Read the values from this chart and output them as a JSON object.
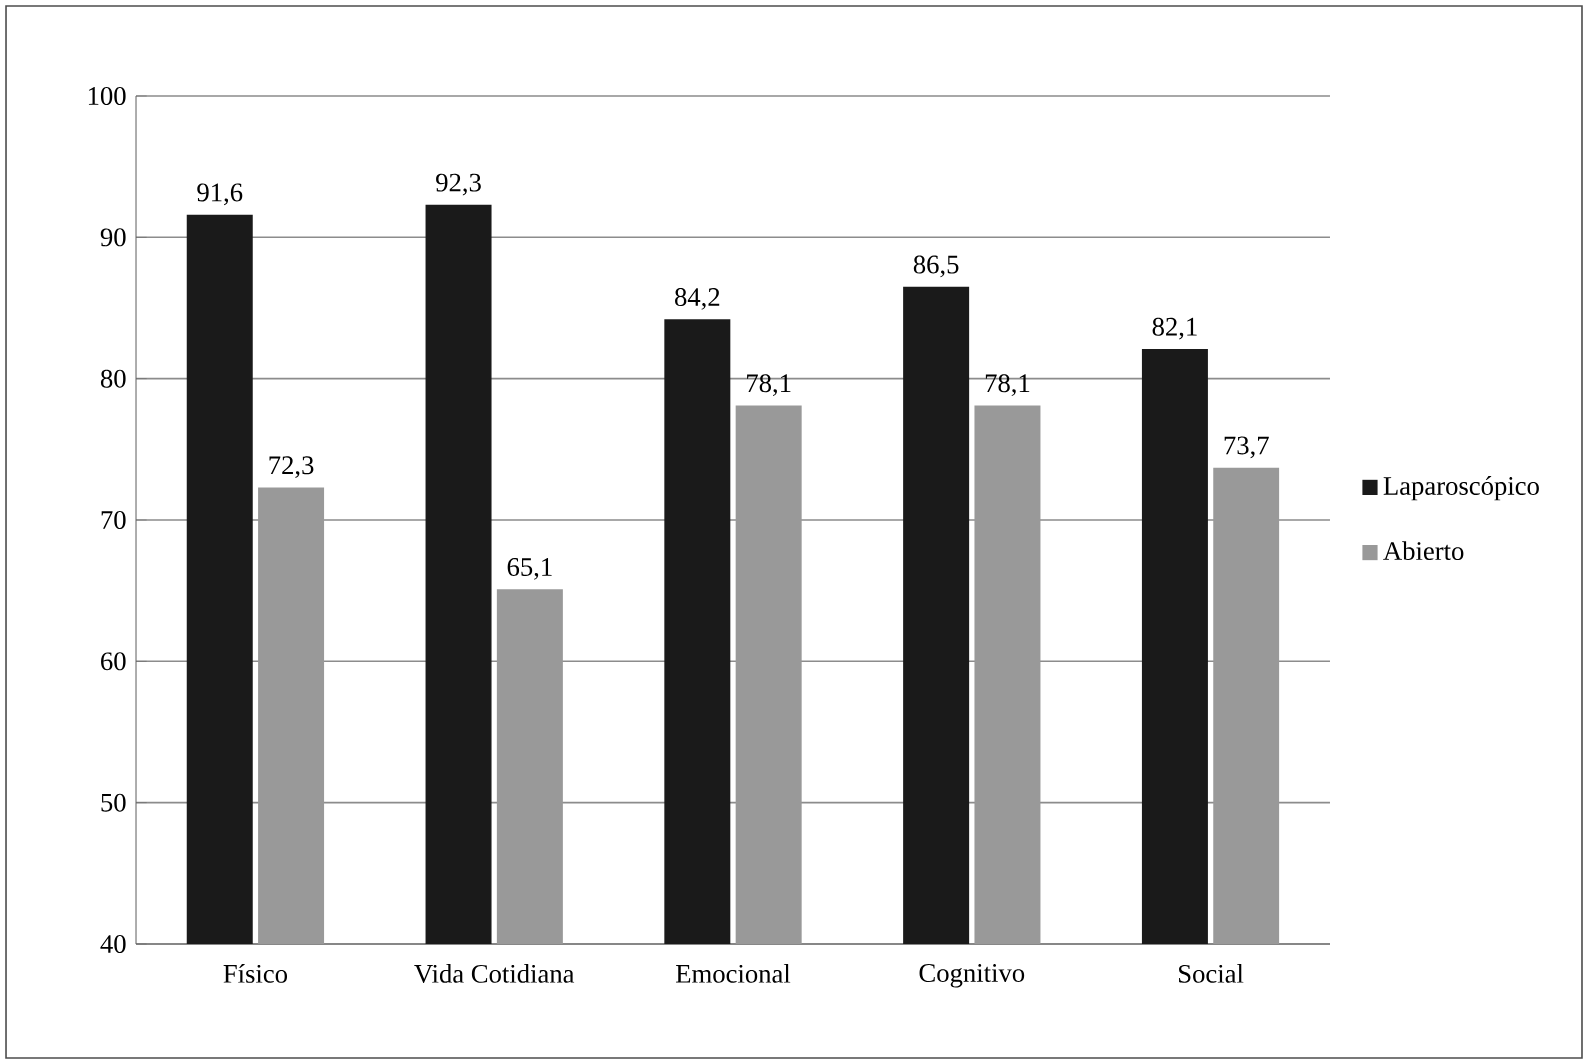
{
  "chart_data": {
    "type": "bar",
    "categories": [
      "Físico",
      "Vida Cotidiana",
      "Emocional",
      "Cognitivo",
      "Social"
    ],
    "series": [
      {
        "name": "Laparoscópico",
        "color": "#1a1a1a",
        "values": [
          91.6,
          92.3,
          84.2,
          86.5,
          82.1
        ],
        "value_labels": [
          "91,6",
          "92,3",
          "84,2",
          "86,5",
          "82,1"
        ]
      },
      {
        "name": "Abierto",
        "color": "#999999",
        "values": [
          72.3,
          65.1,
          78.1,
          78.1,
          73.7
        ],
        "value_labels": [
          "72,3",
          "65,1",
          "78,1",
          "78,1",
          "73,7"
        ]
      }
    ],
    "ylim": [
      40,
      100
    ],
    "yticks": [
      40,
      50,
      60,
      70,
      80,
      90,
      100
    ],
    "grid": "y",
    "legend": "right"
  }
}
